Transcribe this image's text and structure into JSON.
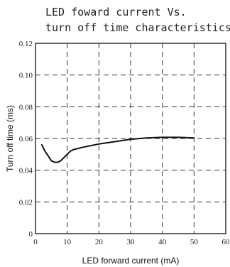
{
  "chart_data": {
    "type": "line",
    "title_line1": "LED foward current Vs.",
    "title_line2": "turn off time characteristics",
    "xlabel": "LED forward current (mA)",
    "ylabel": "Turn off time (ms)",
    "xlim": [
      0,
      60
    ],
    "ylim": [
      0,
      0.12
    ],
    "x_ticks": [
      0,
      10,
      20,
      30,
      40,
      50,
      60
    ],
    "x_tick_labels": [
      "0",
      "10",
      "20",
      "30",
      "40",
      "50",
      "60"
    ],
    "y_ticks": [
      0,
      0.02,
      0.04,
      0.06,
      0.08,
      0.1,
      0.12
    ],
    "y_tick_labels": [
      "0",
      "0.02",
      "0.04",
      "0.06",
      "0.08",
      "0.10",
      "0.12"
    ],
    "grid": true,
    "series": [
      {
        "x": [
          2,
          3,
          4,
          5,
          6,
          7,
          8,
          9,
          10,
          11,
          12,
          15,
          20,
          25,
          30,
          35,
          40,
          45,
          50
        ],
        "y": [
          0.056,
          0.052,
          0.049,
          0.046,
          0.045,
          0.045,
          0.046,
          0.048,
          0.05,
          0.052,
          0.053,
          0.0545,
          0.0565,
          0.058,
          0.0595,
          0.0603,
          0.0607,
          0.0607,
          0.0603
        ]
      }
    ]
  }
}
